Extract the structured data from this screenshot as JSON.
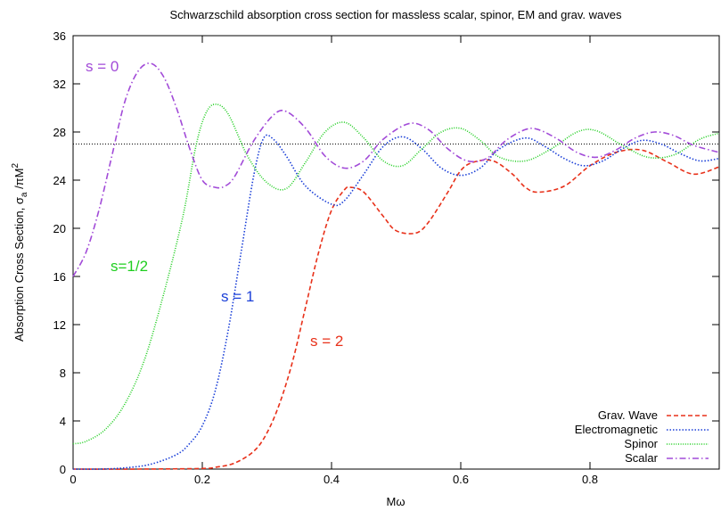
{
  "chart_data": {
    "type": "line",
    "title": "Schwarzschild absorption cross section for massless scalar, spinor, EM and grav. waves",
    "xlabel": "Mω",
    "ylabel_prefix": "Absorption Cross Section, σ",
    "ylabel_sub": "a",
    "ylabel_mid": " /πM",
    "ylabel_sup": "2",
    "xlim": [
      0,
      1.0
    ],
    "ylim": [
      0,
      36
    ],
    "x_ticks": [
      0,
      0.2,
      0.4,
      0.6,
      0.8
    ],
    "x_tick_labels": [
      "0",
      "0.2",
      "0.4",
      "0.6",
      "0.8"
    ],
    "y_ticks": [
      0,
      4,
      8,
      12,
      16,
      20,
      24,
      28,
      32,
      36
    ],
    "y_tick_labels": [
      "0",
      "4",
      "8",
      "12",
      "16",
      "20",
      "24",
      "28",
      "32",
      "36"
    ],
    "grid": false,
    "legend_position": "bottom-right",
    "reference_line": {
      "y": 27,
      "style": "dotted",
      "color": "#000000"
    },
    "series": [
      {
        "name": "Grav. Wave",
        "annotation": "s = 2",
        "color": "#e8311a",
        "dash": "dashed",
        "x": [
          0,
          0.1,
          0.2,
          0.22,
          0.25,
          0.28,
          0.3,
          0.32,
          0.34,
          0.36,
          0.38,
          0.4,
          0.42,
          0.43,
          0.45,
          0.48,
          0.5,
          0.53,
          0.55,
          0.58,
          0.6,
          0.62,
          0.65,
          0.68,
          0.7,
          0.72,
          0.76,
          0.8,
          0.84,
          0.88,
          0.92,
          0.96,
          1.0
        ],
        "y": [
          0,
          0,
          0.05,
          0.15,
          0.5,
          1.5,
          3.0,
          5.5,
          9.0,
          13.5,
          18.0,
          21.5,
          23.2,
          23.4,
          23.0,
          21.0,
          19.8,
          19.6,
          20.5,
          23.0,
          24.8,
          25.5,
          25.6,
          24.5,
          23.4,
          23.0,
          23.5,
          25.2,
          26.3,
          26.5,
          25.5,
          24.5,
          25.1
        ]
      },
      {
        "name": "Electromagnetic",
        "annotation": "s = 1",
        "color": "#1a3fd8",
        "dash": "dotted",
        "x": [
          0,
          0.04,
          0.08,
          0.12,
          0.16,
          0.18,
          0.2,
          0.22,
          0.24,
          0.26,
          0.28,
          0.295,
          0.31,
          0.33,
          0.36,
          0.4,
          0.42,
          0.45,
          0.48,
          0.51,
          0.54,
          0.57,
          0.6,
          0.63,
          0.66,
          0.7,
          0.73,
          0.76,
          0.79,
          0.82,
          0.85,
          0.88,
          0.91,
          0.94,
          0.97,
          1.0
        ],
        "y": [
          0,
          0,
          0.1,
          0.4,
          1.2,
          2.1,
          3.6,
          6.5,
          11.5,
          18.0,
          24.5,
          27.5,
          27.4,
          26.0,
          23.5,
          22.0,
          22.3,
          24.5,
          26.8,
          27.6,
          26.6,
          25.0,
          24.4,
          25.0,
          26.6,
          27.5,
          26.8,
          25.8,
          25.2,
          25.6,
          26.6,
          27.3,
          27.0,
          26.2,
          25.6,
          25.8
        ]
      },
      {
        "name": "Spinor",
        "annotation": "s=1/2",
        "color": "#1fce1f",
        "dash": "dotted-fine",
        "x": [
          0,
          0.02,
          0.05,
          0.08,
          0.11,
          0.14,
          0.17,
          0.19,
          0.205,
          0.22,
          0.24,
          0.27,
          0.3,
          0.33,
          0.36,
          0.39,
          0.42,
          0.45,
          0.48,
          0.51,
          0.54,
          0.57,
          0.6,
          0.63,
          0.66,
          0.7,
          0.74,
          0.78,
          0.81,
          0.85,
          0.89,
          0.93,
          0.97,
          1.0
        ],
        "y": [
          2.1,
          2.3,
          3.3,
          5.4,
          9.0,
          14.5,
          21.0,
          26.8,
          29.5,
          30.3,
          29.5,
          26.0,
          23.8,
          23.3,
          25.5,
          28.0,
          28.8,
          27.5,
          25.6,
          25.2,
          26.6,
          28.0,
          28.3,
          27.3,
          25.9,
          25.6,
          26.6,
          28.0,
          28.1,
          26.9,
          25.9,
          26.1,
          27.4,
          27.9
        ]
      },
      {
        "name": "Scalar",
        "annotation": "s = 0",
        "color": "#a24bd8",
        "dash": "dashdot",
        "x": [
          0,
          0.02,
          0.04,
          0.06,
          0.08,
          0.1,
          0.12,
          0.14,
          0.16,
          0.18,
          0.2,
          0.22,
          0.235,
          0.25,
          0.28,
          0.31,
          0.33,
          0.36,
          0.39,
          0.42,
          0.45,
          0.48,
          0.52,
          0.55,
          0.58,
          0.61,
          0.64,
          0.67,
          0.7,
          0.72,
          0.75,
          0.78,
          0.81,
          0.84,
          0.87,
          0.9,
          0.93,
          0.96,
          1.0
        ],
        "y": [
          16,
          18.0,
          21.5,
          26.0,
          30.5,
          33.0,
          33.7,
          32.6,
          30.0,
          26.7,
          24.0,
          23.4,
          23.5,
          24.3,
          27.3,
          29.4,
          29.7,
          28.3,
          26.0,
          25.0,
          25.6,
          27.4,
          28.7,
          28.2,
          26.6,
          25.6,
          25.8,
          27.3,
          28.2,
          28.2,
          27.4,
          26.3,
          25.9,
          26.5,
          27.5,
          28.0,
          27.7,
          26.9,
          26.3
        ]
      }
    ]
  }
}
